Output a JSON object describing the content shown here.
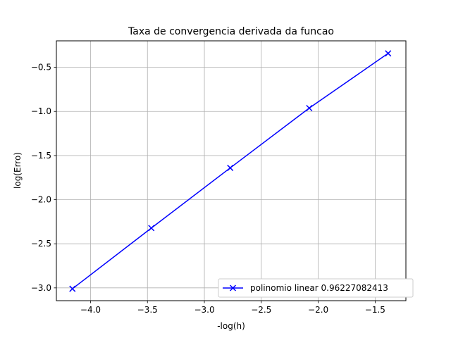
{
  "chart_data": {
    "type": "line",
    "title": "Taxa de convergencia derivada da funcao",
    "xlabel": "-log(h)",
    "ylabel": "log(Erro)",
    "xlim": [
      -4.3,
      -1.23
    ],
    "ylim": [
      -3.145,
      -0.2
    ],
    "xticks": [
      -4.0,
      -3.5,
      -3.0,
      -2.5,
      -2.0,
      -1.5
    ],
    "xtick_labels": [
      "−4.0",
      "−3.5",
      "−3.0",
      "−2.5",
      "−2.0",
      "−1.5"
    ],
    "yticks": [
      -3.0,
      -2.5,
      -2.0,
      -1.5,
      -1.0,
      -0.5
    ],
    "ytick_labels": [
      "−3.0",
      "−2.5",
      "−2.0",
      "−1.5",
      "−1.0",
      "−0.5"
    ],
    "grid": true,
    "legend_position": "lower-right",
    "series": [
      {
        "name": "polinomio linear 0.96227082413",
        "color": "#0000ff",
        "marker": "x",
        "x": [
          -4.159,
          -3.466,
          -2.773,
          -2.079,
          -1.386
        ],
        "y": [
          -3.01,
          -2.322,
          -1.64,
          -0.962,
          -0.342
        ]
      }
    ]
  }
}
